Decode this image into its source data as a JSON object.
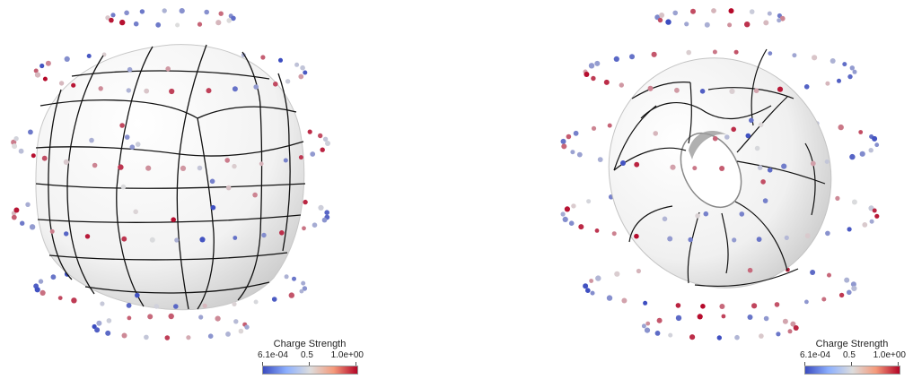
{
  "scenes": [
    {
      "id": "sphere",
      "legend": {
        "title": "Charge Strength",
        "min_label": "6.1e-04",
        "mid_label": "0.5",
        "max_label": "1.0e+00"
      }
    },
    {
      "id": "torus",
      "legend": {
        "title": "Charge Strength",
        "min_label": "6.1e-04",
        "mid_label": "0.5",
        "max_label": "1.0e+00"
      }
    }
  ],
  "colormap": {
    "name": "coolwarm",
    "low": "#3b4cc0",
    "mid": "#dddddd",
    "high": "#b40426"
  }
}
